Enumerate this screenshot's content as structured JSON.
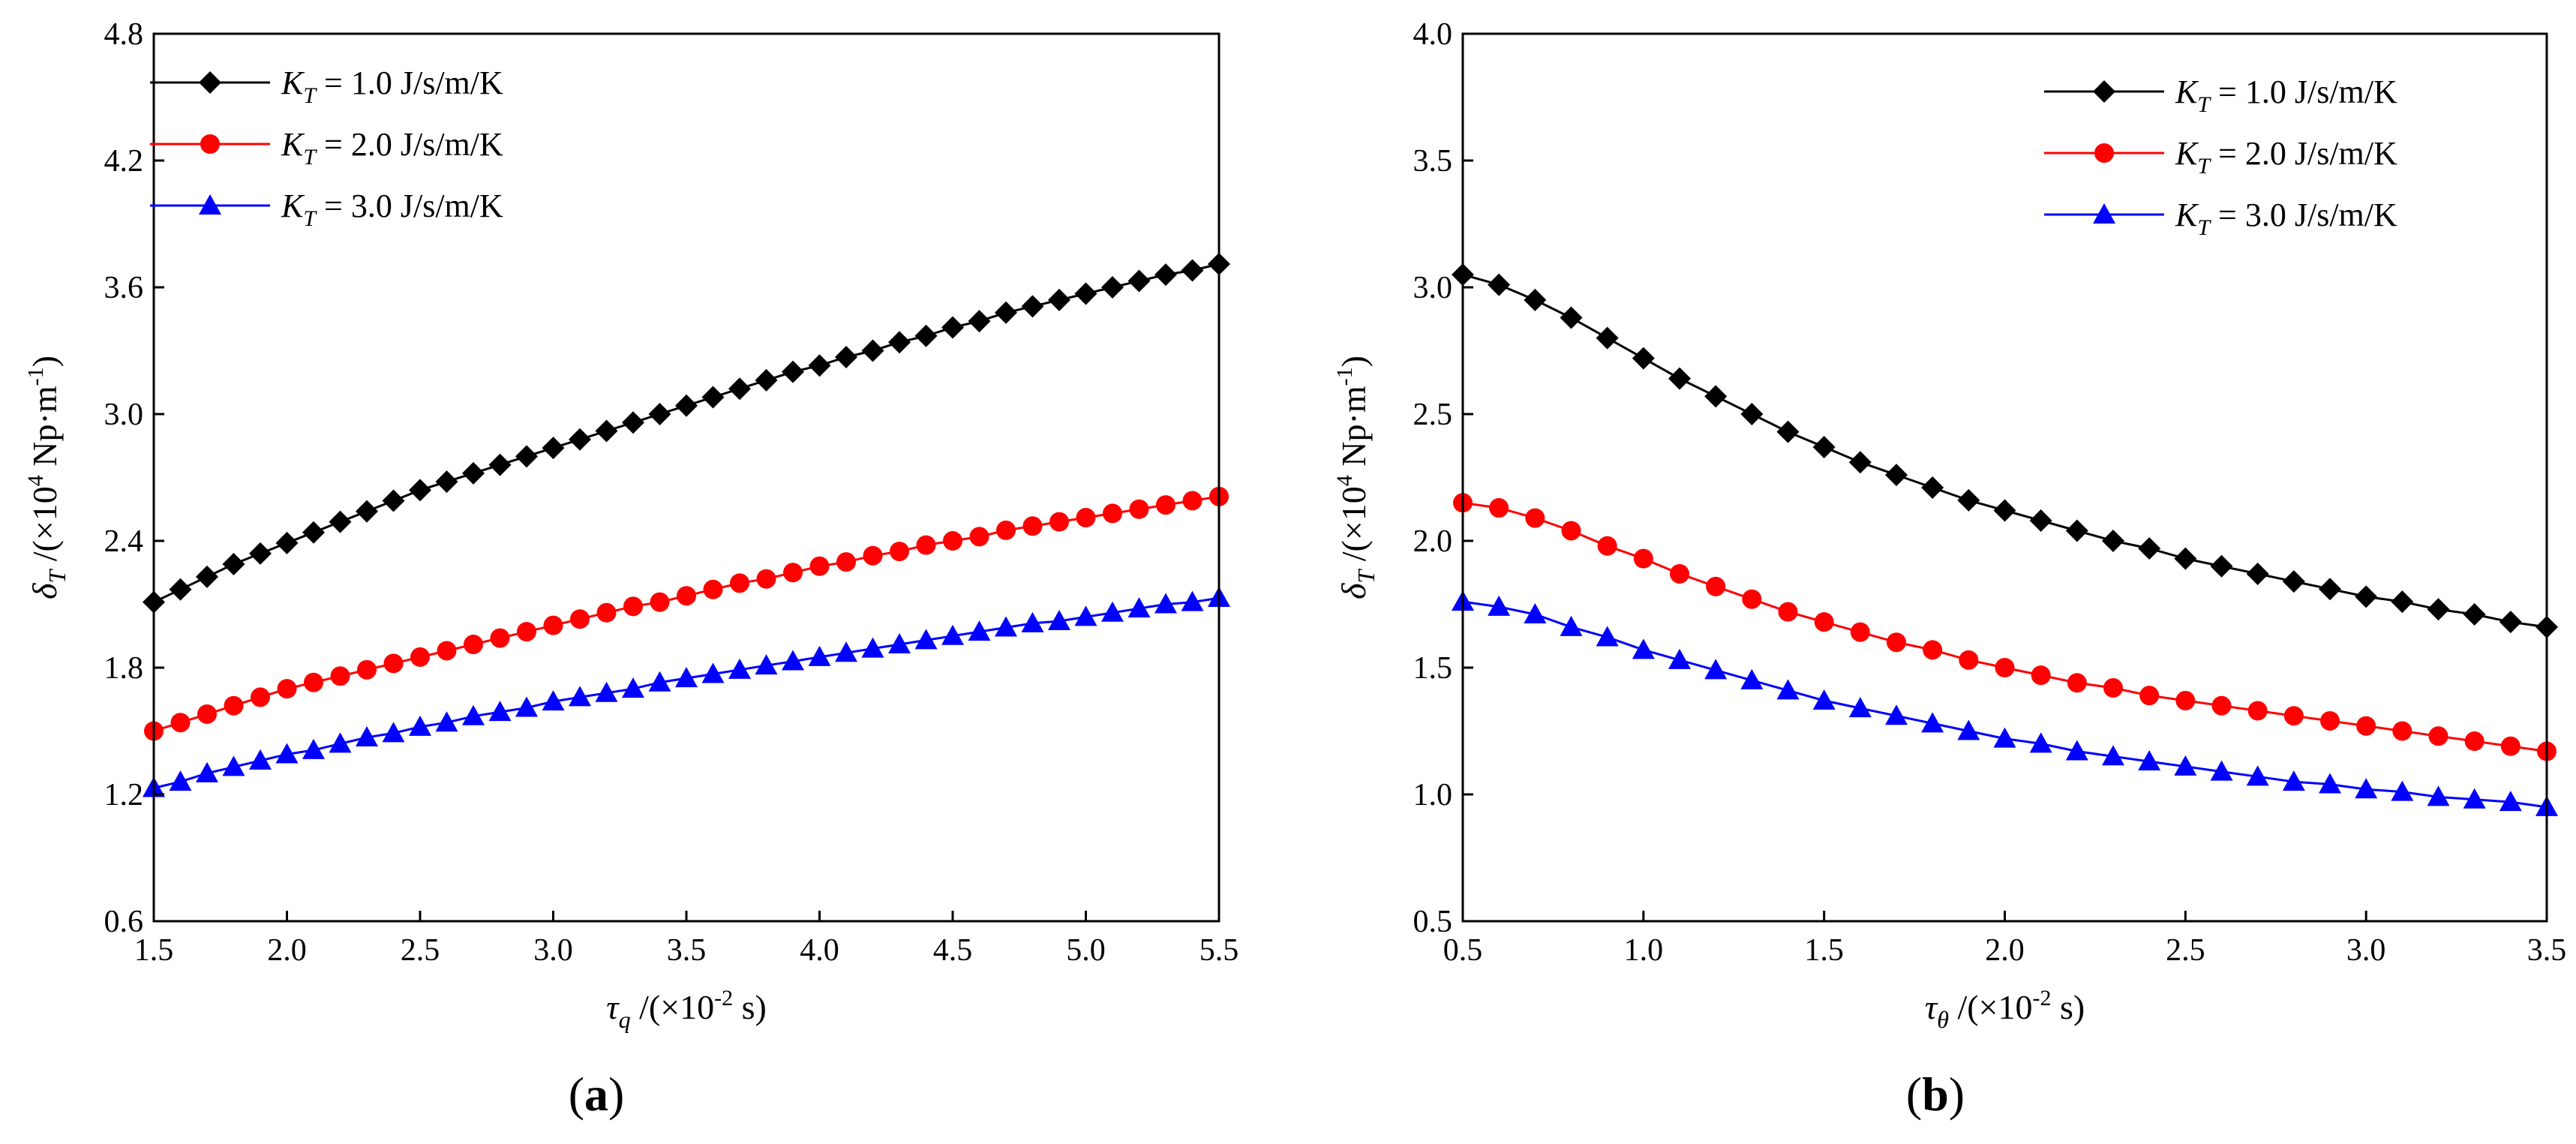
{
  "chart_data": [
    {
      "type": "line",
      "panel_label": "(a)",
      "xlabel": {
        "sym": "τ",
        "sub": "q",
        "unit_pre": " /(×10",
        "exp": "-2",
        "unit_post": " s)"
      },
      "ylabel": {
        "sym": "δ",
        "sub": "T",
        "unit_pre": " /(×10",
        "exp": "4",
        "unit_mid": " Np·m",
        "exp2": "-1",
        "unit_post": ")"
      },
      "xlim": [
        1.5,
        5.5
      ],
      "ylim": [
        0.6,
        4.8
      ],
      "xticks": [
        "1.5",
        "2.0",
        "2.5",
        "3.0",
        "3.5",
        "4.0",
        "4.5",
        "5.0",
        "5.5"
      ],
      "yticks": [
        "0.6",
        "1.2",
        "1.8",
        "2.4",
        "3.0",
        "3.6",
        "4.2",
        "4.8"
      ],
      "legend_position": "top-left",
      "x": [
        1.5,
        1.6,
        1.7,
        1.8,
        1.9,
        2.0,
        2.1,
        2.2,
        2.3,
        2.4,
        2.5,
        2.6,
        2.7,
        2.8,
        2.9,
        3.0,
        3.1,
        3.2,
        3.3,
        3.4,
        3.5,
        3.6,
        3.7,
        3.8,
        3.9,
        4.0,
        4.1,
        4.2,
        4.3,
        4.4,
        4.5,
        4.6,
        4.7,
        4.8,
        4.9,
        5.0,
        5.1,
        5.2,
        5.3,
        5.4,
        5.5
      ],
      "series": [
        {
          "name_sym": "K",
          "name_sub": "T",
          "name_rest": " = 1.0 J/s/m/K",
          "color": "#000000",
          "marker": "diamond",
          "values": [
            2.11,
            2.17,
            2.23,
            2.29,
            2.34,
            2.39,
            2.44,
            2.49,
            2.54,
            2.59,
            2.64,
            2.68,
            2.72,
            2.76,
            2.8,
            2.84,
            2.88,
            2.92,
            2.96,
            3.0,
            3.04,
            3.08,
            3.12,
            3.16,
            3.2,
            3.23,
            3.27,
            3.3,
            3.34,
            3.37,
            3.41,
            3.44,
            3.48,
            3.51,
            3.54,
            3.57,
            3.6,
            3.63,
            3.66,
            3.68,
            3.71
          ]
        },
        {
          "name_sym": "K",
          "name_sub": "T",
          "name_rest": " = 2.0 J/s/m/K",
          "color": "#ff0000",
          "marker": "circle",
          "values": [
            1.5,
            1.54,
            1.58,
            1.62,
            1.66,
            1.7,
            1.73,
            1.76,
            1.79,
            1.82,
            1.85,
            1.88,
            1.91,
            1.94,
            1.97,
            2.0,
            2.03,
            2.06,
            2.09,
            2.11,
            2.14,
            2.17,
            2.2,
            2.22,
            2.25,
            2.28,
            2.3,
            2.33,
            2.35,
            2.38,
            2.4,
            2.42,
            2.45,
            2.47,
            2.49,
            2.51,
            2.53,
            2.55,
            2.57,
            2.59,
            2.61
          ]
        },
        {
          "name_sym": "K",
          "name_sub": "T",
          "name_rest": " = 3.0 J/s/m/K",
          "color": "#0000ff",
          "marker": "triangle",
          "values": [
            1.23,
            1.26,
            1.3,
            1.33,
            1.36,
            1.39,
            1.41,
            1.44,
            1.47,
            1.49,
            1.52,
            1.54,
            1.57,
            1.59,
            1.61,
            1.64,
            1.66,
            1.68,
            1.7,
            1.73,
            1.75,
            1.77,
            1.79,
            1.81,
            1.83,
            1.85,
            1.87,
            1.89,
            1.91,
            1.93,
            1.95,
            1.97,
            1.99,
            2.01,
            2.02,
            2.04,
            2.06,
            2.08,
            2.1,
            2.11,
            2.13
          ]
        }
      ]
    },
    {
      "type": "line",
      "panel_label": "(b)",
      "xlabel": {
        "sym": "τ",
        "sub": "θ",
        "unit_pre": " /(×10",
        "exp": "-2",
        "unit_post": " s)"
      },
      "ylabel": {
        "sym": "δ",
        "sub": "T",
        "unit_pre": " /(×10",
        "exp": "4",
        "unit_mid": " Np·m",
        "exp2": "-1",
        "unit_post": ")"
      },
      "xlim": [
        0.5,
        3.5
      ],
      "ylim": [
        0.5,
        4.0
      ],
      "xticks": [
        "0.5",
        "1.0",
        "1.5",
        "2.0",
        "2.5",
        "3.0",
        "3.5"
      ],
      "yticks": [
        "0.5",
        "1.0",
        "1.5",
        "2.0",
        "2.5",
        "3.0",
        "3.5",
        "4.0"
      ],
      "legend_position": "top-right",
      "x": [
        0.5,
        0.6,
        0.7,
        0.8,
        0.9,
        1.0,
        1.1,
        1.2,
        1.3,
        1.4,
        1.5,
        1.6,
        1.7,
        1.8,
        1.9,
        2.0,
        2.1,
        2.2,
        2.3,
        2.4,
        2.5,
        2.6,
        2.7,
        2.8,
        2.9,
        3.0,
        3.1,
        3.2,
        3.3,
        3.4,
        3.5
      ],
      "series": [
        {
          "name_sym": "K",
          "name_sub": "T",
          "name_rest": " = 1.0 J/s/m/K",
          "color": "#000000",
          "marker": "diamond",
          "values": [
            3.05,
            3.01,
            2.95,
            2.88,
            2.8,
            2.72,
            2.64,
            2.57,
            2.5,
            2.43,
            2.37,
            2.31,
            2.26,
            2.21,
            2.16,
            2.12,
            2.08,
            2.04,
            2.0,
            1.97,
            1.93,
            1.9,
            1.87,
            1.84,
            1.81,
            1.78,
            1.76,
            1.73,
            1.71,
            1.68,
            1.66
          ]
        },
        {
          "name_sym": "K",
          "name_sub": "T",
          "name_rest": " = 2.0 J/s/m/K",
          "color": "#ff0000",
          "marker": "circle",
          "values": [
            2.15,
            2.13,
            2.09,
            2.04,
            1.98,
            1.93,
            1.87,
            1.82,
            1.77,
            1.72,
            1.68,
            1.64,
            1.6,
            1.57,
            1.53,
            1.5,
            1.47,
            1.44,
            1.42,
            1.39,
            1.37,
            1.35,
            1.33,
            1.31,
            1.29,
            1.27,
            1.25,
            1.23,
            1.21,
            1.19,
            1.17
          ]
        },
        {
          "name_sym": "K",
          "name_sub": "T",
          "name_rest": " = 3.0 J/s/m/K",
          "color": "#0000ff",
          "marker": "triangle",
          "values": [
            1.76,
            1.74,
            1.71,
            1.66,
            1.62,
            1.57,
            1.53,
            1.49,
            1.45,
            1.41,
            1.37,
            1.34,
            1.31,
            1.28,
            1.25,
            1.22,
            1.2,
            1.17,
            1.15,
            1.13,
            1.11,
            1.09,
            1.07,
            1.05,
            1.04,
            1.02,
            1.01,
            0.99,
            0.98,
            0.97,
            0.95
          ]
        }
      ]
    }
  ]
}
